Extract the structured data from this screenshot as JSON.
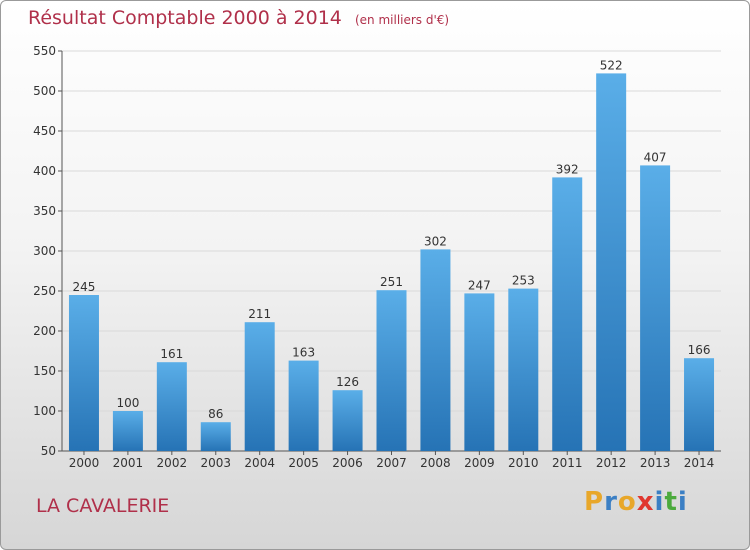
{
  "header": {
    "title": "Résultat Comptable 2000 à 2014",
    "subtitle": "(en milliers d'€)"
  },
  "footer": {
    "town": "LA CAVALERIE",
    "logo_letters": [
      "P",
      "r",
      "o",
      "x",
      "i",
      "t",
      "i"
    ],
    "logo_colors": [
      "#e8a72a",
      "#3b7fc4",
      "#e8a72a",
      "#e0372f",
      "#3b7fc4",
      "#4caa3d",
      "#3b7fc4"
    ]
  },
  "chart_data": {
    "type": "bar",
    "title": "Résultat Comptable 2000 à 2014",
    "subtitle": "(en milliers d'€)",
    "categories": [
      "2000",
      "2001",
      "2002",
      "2003",
      "2004",
      "2005",
      "2006",
      "2007",
      "2008",
      "2009",
      "2010",
      "2011",
      "2012",
      "2013",
      "2014"
    ],
    "values": [
      245,
      100,
      161,
      86,
      211,
      163,
      126,
      251,
      302,
      247,
      253,
      392,
      522,
      407,
      166
    ],
    "ylim": [
      50,
      550
    ],
    "yticks": [
      50,
      100,
      150,
      200,
      250,
      300,
      350,
      400,
      450,
      500,
      550
    ],
    "grid": true,
    "bar_color": "#3a8fd4"
  }
}
